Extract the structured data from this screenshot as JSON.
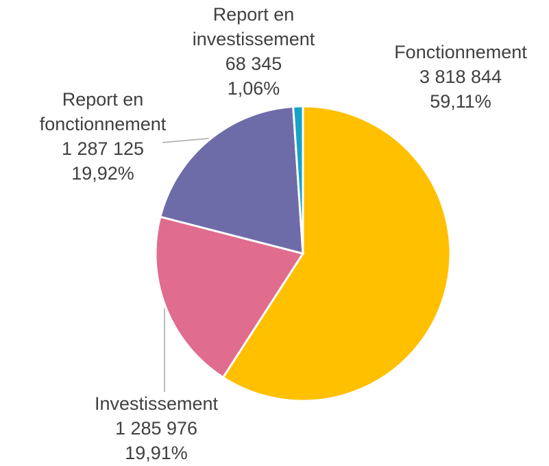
{
  "chart_data": {
    "type": "pie",
    "categories": [
      "Fonctionnement",
      "Investissement",
      "Report en fonctionnement",
      "Report en investissement"
    ],
    "values": [
      3818844,
      1285976,
      1287125,
      68345
    ],
    "value_labels": [
      "3 818 844",
      "1 285 976",
      "1 287 125",
      "68 345"
    ],
    "percents": [
      59.11,
      19.91,
      19.92,
      1.06
    ],
    "percent_labels": [
      "59,11%",
      "19,91%",
      "19,92%",
      "1,06%"
    ],
    "colors": [
      "#FFC000",
      "#E06C8E",
      "#6E6CA8",
      "#17A2C8"
    ]
  }
}
